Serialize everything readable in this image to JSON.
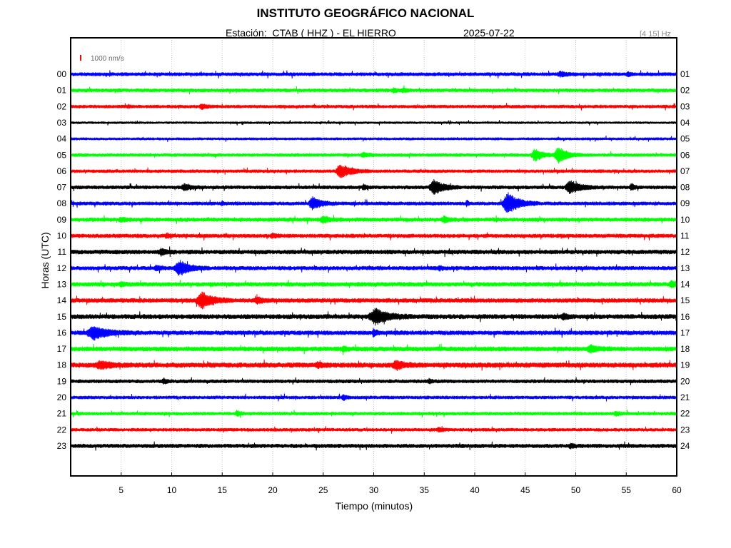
{
  "header": {
    "title": "INSTITUTO GEOGRÁFICO NACIONAL",
    "station": "Estación:  CTAB ( HHZ ) - EL HIERRO",
    "date": "2025-07-22",
    "filter": "[4 15] Hz"
  },
  "chart_data": {
    "type": "line",
    "title": "INSTITUTO GEOGRÁFICO NACIONAL",
    "xlabel": "Tiempo (minutos)",
    "ylabel": "Horas (UTC)",
    "xlim": [
      0,
      60
    ],
    "x_ticks": [
      5,
      10,
      15,
      20,
      25,
      30,
      35,
      40,
      45,
      50,
      55,
      60
    ],
    "grid": true,
    "scale_bar_label": "1000 nm/s",
    "colors": {
      "blue": "#0000ff",
      "green": "#00ff00",
      "red": "#ff0000",
      "black": "#000000"
    },
    "hours_left": [
      "00",
      "01",
      "02",
      "03",
      "04",
      "05",
      "06",
      "07",
      "08",
      "09",
      "10",
      "11",
      "12",
      "13",
      "14",
      "15",
      "16",
      "17",
      "18",
      "19",
      "20",
      "21",
      "22",
      "23"
    ],
    "hours_right": [
      "01",
      "02",
      "03",
      "04",
      "05",
      "06",
      "07",
      "08",
      "09",
      "10",
      "11",
      "12",
      "13",
      "14",
      "15",
      "16",
      "17",
      "18",
      "19",
      "20",
      "21",
      "22",
      "23",
      "24"
    ],
    "traces": [
      {
        "hour": "00",
        "color": "blue",
        "noise": 0.55,
        "events": [
          {
            "t": 48.5,
            "amp": 0.6,
            "dur": 0.6
          },
          {
            "t": 55.2,
            "amp": 0.5,
            "dur": 0.3
          }
        ]
      },
      {
        "hour": "01",
        "color": "green",
        "noise": 0.55,
        "events": [
          {
            "t": 32.0,
            "amp": 0.5,
            "dur": 0.3
          },
          {
            "t": 32.9,
            "amp": 0.5,
            "dur": 0.3
          }
        ]
      },
      {
        "hour": "02",
        "color": "red",
        "noise": 0.5,
        "events": [
          {
            "t": 13.0,
            "amp": 0.6,
            "dur": 0.5
          },
          {
            "t": 5.7,
            "amp": 0.4,
            "dur": 0.2
          }
        ]
      },
      {
        "hour": "03",
        "color": "black",
        "noise": 0.35,
        "events": []
      },
      {
        "hour": "04",
        "color": "blue",
        "noise": 0.4,
        "events": []
      },
      {
        "hour": "05",
        "color": "green",
        "noise": 0.5,
        "events": [
          {
            "t": 29.0,
            "amp": 0.5,
            "dur": 0.5
          },
          {
            "t": 46.0,
            "amp": 1.6,
            "dur": 0.7
          },
          {
            "t": 48.3,
            "amp": 2.2,
            "dur": 0.8
          }
        ]
      },
      {
        "hour": "06",
        "color": "red",
        "noise": 0.5,
        "events": [
          {
            "t": 26.8,
            "amp": 1.8,
            "dur": 1.0
          }
        ]
      },
      {
        "hour": "07",
        "color": "black",
        "noise": 0.55,
        "events": [
          {
            "t": 11.3,
            "amp": 0.8,
            "dur": 0.6
          },
          {
            "t": 36.0,
            "amp": 1.9,
            "dur": 0.9
          },
          {
            "t": 49.5,
            "amp": 1.8,
            "dur": 0.9
          },
          {
            "t": 55.5,
            "amp": 0.8,
            "dur": 0.3
          },
          {
            "t": 29.0,
            "amp": 0.6,
            "dur": 0.3
          }
        ]
      },
      {
        "hour": "08",
        "color": "blue",
        "noise": 0.55,
        "events": [
          {
            "t": 24.0,
            "amp": 1.6,
            "dur": 0.8
          },
          {
            "t": 43.3,
            "amp": 2.8,
            "dur": 1.0
          },
          {
            "t": 39.2,
            "amp": 0.7,
            "dur": 0.2
          },
          {
            "t": 15.0,
            "amp": 0.5,
            "dur": 0.2
          }
        ]
      },
      {
        "hour": "09",
        "color": "green",
        "noise": 0.6,
        "events": [
          {
            "t": 25.0,
            "amp": 0.8,
            "dur": 0.6
          },
          {
            "t": 37.0,
            "amp": 0.9,
            "dur": 0.4
          },
          {
            "t": 5.0,
            "amp": 0.5,
            "dur": 0.4
          }
        ]
      },
      {
        "hour": "10",
        "color": "red",
        "noise": 0.6,
        "events": [
          {
            "t": 20.0,
            "amp": 0.5,
            "dur": 0.4
          },
          {
            "t": 9.5,
            "amp": 0.5,
            "dur": 0.3
          }
        ]
      },
      {
        "hour": "11",
        "color": "black",
        "noise": 0.65,
        "events": [
          {
            "t": 9.0,
            "amp": 0.8,
            "dur": 0.5
          }
        ]
      },
      {
        "hour": "12",
        "color": "blue",
        "noise": 0.6,
        "events": [
          {
            "t": 10.8,
            "amp": 1.9,
            "dur": 1.0
          },
          {
            "t": 8.5,
            "amp": 0.6,
            "dur": 0.4
          },
          {
            "t": 36.5,
            "amp": 0.6,
            "dur": 0.3
          }
        ]
      },
      {
        "hour": "13",
        "color": "green",
        "noise": 0.65,
        "events": [
          {
            "t": 59.5,
            "amp": 0.8,
            "dur": 0.5
          },
          {
            "t": 5.0,
            "amp": 0.5,
            "dur": 0.4
          }
        ]
      },
      {
        "hour": "14",
        "color": "red",
        "noise": 0.65,
        "events": [
          {
            "t": 13.0,
            "amp": 2.2,
            "dur": 1.0
          },
          {
            "t": 18.5,
            "amp": 0.7,
            "dur": 0.6
          }
        ]
      },
      {
        "hour": "15",
        "color": "black",
        "noise": 0.7,
        "events": [
          {
            "t": 30.2,
            "amp": 2.0,
            "dur": 1.2
          },
          {
            "t": 48.8,
            "amp": 0.7,
            "dur": 0.4
          }
        ]
      },
      {
        "hour": "16",
        "color": "blue",
        "noise": 0.65,
        "events": [
          {
            "t": 2.3,
            "amp": 1.8,
            "dur": 1.2
          },
          {
            "t": 30.0,
            "amp": 0.9,
            "dur": 0.3
          }
        ]
      },
      {
        "hour": "17",
        "color": "green",
        "noise": 0.7,
        "events": [
          {
            "t": 51.5,
            "amp": 0.8,
            "dur": 0.7
          },
          {
            "t": 27.0,
            "amp": 0.5,
            "dur": 0.4
          }
        ]
      },
      {
        "hour": "18",
        "color": "red",
        "noise": 0.75,
        "events": [
          {
            "t": 3.0,
            "amp": 0.9,
            "dur": 1.0
          },
          {
            "t": 32.3,
            "amp": 1.0,
            "dur": 0.8
          },
          {
            "t": 24.5,
            "amp": 0.6,
            "dur": 0.5
          }
        ]
      },
      {
        "hour": "19",
        "color": "black",
        "noise": 0.55,
        "events": [
          {
            "t": 9.2,
            "amp": 0.7,
            "dur": 0.3
          },
          {
            "t": 35.5,
            "amp": 0.5,
            "dur": 0.3
          }
        ]
      },
      {
        "hour": "20",
        "color": "blue",
        "noise": 0.5,
        "events": [
          {
            "t": 27.0,
            "amp": 0.7,
            "dur": 0.3
          }
        ]
      },
      {
        "hour": "21",
        "color": "green",
        "noise": 0.5,
        "events": [
          {
            "t": 16.5,
            "amp": 0.6,
            "dur": 0.4
          },
          {
            "t": 54.0,
            "amp": 0.5,
            "dur": 0.4
          }
        ]
      },
      {
        "hour": "22",
        "color": "red",
        "noise": 0.5,
        "events": [
          {
            "t": 36.5,
            "amp": 0.5,
            "dur": 0.4
          }
        ]
      },
      {
        "hour": "23",
        "color": "black",
        "noise": 0.6,
        "events": [
          {
            "t": 49.5,
            "amp": 0.5,
            "dur": 0.4
          }
        ]
      }
    ]
  }
}
